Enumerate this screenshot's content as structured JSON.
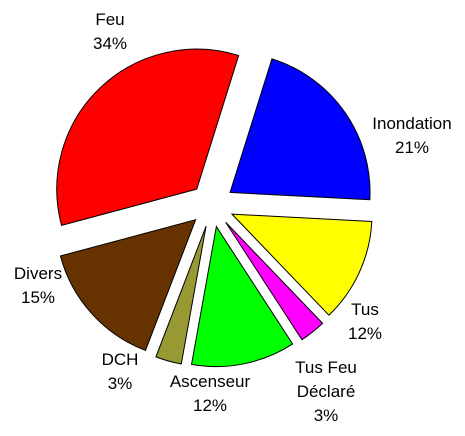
{
  "chart_data": {
    "type": "pie",
    "categories": [
      "Feu",
      "Inondation",
      "Tus",
      "Tus Feu Déclaré",
      "Ascenseur",
      "DCH",
      "Divers"
    ],
    "values": [
      34,
      21,
      12,
      3,
      12,
      3,
      15
    ],
    "value_labels": [
      "34%",
      "21%",
      "12%",
      "3%",
      "12%",
      "3%",
      "15%"
    ],
    "colors": [
      "#ff0000",
      "#0000ff",
      "#ffff00",
      "#ff00ff",
      "#00ff00",
      "#999933",
      "#663300"
    ],
    "exploded": true
  }
}
